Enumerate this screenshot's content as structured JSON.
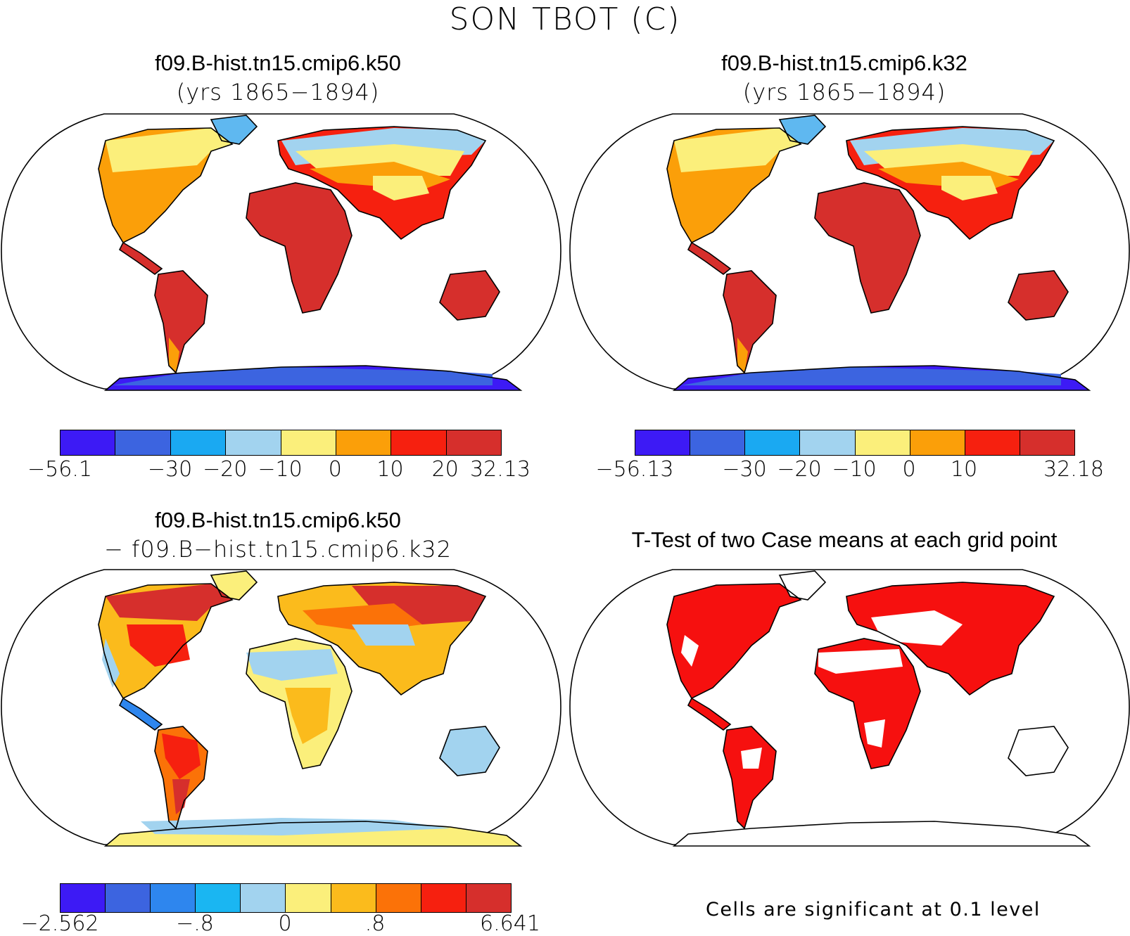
{
  "main_title": "SON TBOT (C)",
  "panels": {
    "top_left": {
      "title": "f09.B-hist.tn15.cmip6.k50",
      "subtitle": "(yrs 1865−1894)",
      "colorbar": {
        "colors": [
          "#3d1af5",
          "#3c64e0",
          "#1aa9f2",
          "#a2d3ef",
          "#fbef7b",
          "#fb9f09",
          "#f6200f",
          "#d62f2c"
        ],
        "labels": [
          "−56.1",
          "−30",
          "−20",
          "−10",
          "0",
          "10",
          "20",
          "32.13"
        ]
      }
    },
    "top_right": {
      "title": "f09.B-hist.tn15.cmip6.k32",
      "subtitle": "(yrs 1865−1894)",
      "colorbar": {
        "colors": [
          "#3d1af5",
          "#3c64e0",
          "#1aa9f2",
          "#a2d3ef",
          "#fbef7b",
          "#fb9f09",
          "#f6200f",
          "#d62f2c"
        ],
        "labels": [
          "−56.13",
          "−30",
          "−20",
          "−10",
          "0",
          "10",
          "32.18"
        ]
      }
    },
    "bottom_left": {
      "title": "f09.B-hist.tn15.cmip6.k50",
      "subtitle": "− f09.B−hist.tn15.cmip6.k32",
      "colorbar": {
        "colors": [
          "#3d1af5",
          "#3c64e0",
          "#2e86ee",
          "#1ab6f2",
          "#a2d3ef",
          "#fbef7b",
          "#fbbb1c",
          "#fb7208",
          "#f6200f",
          "#d62f2c"
        ],
        "labels": [
          "−2.562",
          "−.8",
          "0",
          ".8",
          "6.641"
        ]
      }
    },
    "bottom_right": {
      "title": "T-Test of two Case means at each grid point",
      "note": "Cells are significant at 0.1 level"
    }
  }
}
